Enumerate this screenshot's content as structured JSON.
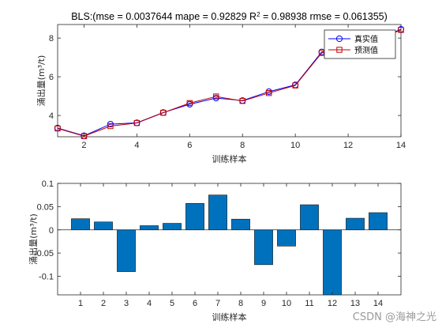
{
  "chart_data": [
    {
      "type": "line",
      "title": "BLS:(mse = 0.0037644 mape = 0.92829  R² = 0.98938 rmse = 0.061355)",
      "xlabel": "训练样本",
      "ylabel": "涌出量(m³/t)",
      "xlim": [
        1,
        14
      ],
      "ylim": [
        2.9,
        8.7
      ],
      "xticks": [
        2,
        4,
        6,
        8,
        10,
        12,
        14
      ],
      "yticks": [
        4,
        6,
        8
      ],
      "x": [
        1,
        2,
        3,
        4,
        5,
        6,
        7,
        8,
        9,
        10,
        11,
        12,
        13,
        14
      ],
      "series": [
        {
          "name": "真实值",
          "color": "#0000ff",
          "marker": "circle",
          "values": [
            3.35,
            2.95,
            3.55,
            3.62,
            4.15,
            4.58,
            4.9,
            4.77,
            5.23,
            5.58,
            7.28,
            7.4,
            7.88,
            8.45
          ]
        },
        {
          "name": "预测值",
          "color": "#c00000",
          "marker": "square",
          "values": [
            3.33,
            2.93,
            3.45,
            3.61,
            4.14,
            4.64,
            4.98,
            4.75,
            5.16,
            5.55,
            7.23,
            7.55,
            7.86,
            8.42
          ]
        }
      ],
      "legend": "top-right",
      "grid": false
    },
    {
      "type": "bar",
      "title": "",
      "xlabel": "训练样本",
      "ylabel": "涌出量(m³/t)",
      "categories": [
        "1",
        "2",
        "3",
        "4",
        "5",
        "6",
        "7",
        "8",
        "9",
        "10",
        "11",
        "12",
        "13",
        "14"
      ],
      "values": [
        0.024,
        0.017,
        -0.09,
        0.009,
        0.014,
        0.057,
        0.075,
        0.023,
        -0.075,
        -0.035,
        0.054,
        -0.14,
        0.025,
        0.037
      ],
      "ylim": [
        -0.14,
        0.1
      ],
      "yticks": [
        -0.1,
        -0.05,
        0,
        0.05,
        0.1
      ],
      "ytick_labels": [
        "-0.1",
        "-0.05",
        "0",
        "0.05",
        "0.1"
      ],
      "bar_color": "#0072bd",
      "grid": false
    }
  ],
  "watermark": "CSDN @海神之光"
}
